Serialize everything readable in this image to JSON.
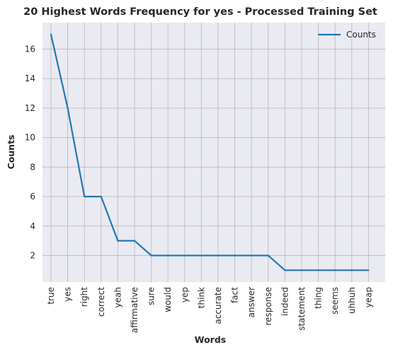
{
  "chart_data": {
    "type": "line",
    "title": "20 Highest Words Frequency for yes - Processed Training Set",
    "xlabel": "Words",
    "ylabel": "Counts",
    "categories": [
      "true",
      "yes",
      "right",
      "correct",
      "yeah",
      "affirmative",
      "sure",
      "would",
      "yep",
      "think",
      "accurate",
      "fact",
      "answer",
      "response",
      "indeed",
      "statement",
      "thing",
      "seems",
      "uhhuh",
      "yeap"
    ],
    "series": [
      {
        "name": "Counts",
        "values": [
          17,
          12,
          6,
          6,
          3,
          3,
          2,
          2,
          2,
          2,
          2,
          2,
          2,
          2,
          1,
          1,
          1,
          1,
          1,
          1
        ],
        "color": "#1f77b4"
      }
    ],
    "yticks": [
      2,
      4,
      6,
      8,
      10,
      12,
      14,
      16
    ],
    "ylim": [
      0.2,
      17.8
    ],
    "grid": true,
    "legend_position": "top-right",
    "background_color": "#eaeaf2",
    "grid_color": "#c0c0c0"
  }
}
